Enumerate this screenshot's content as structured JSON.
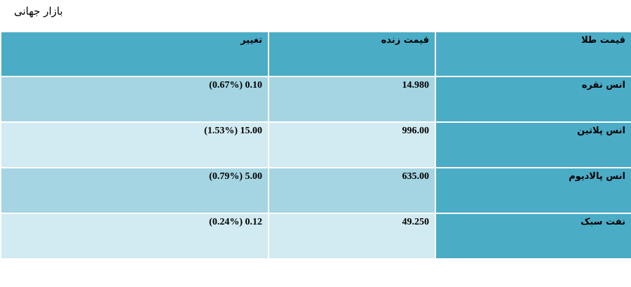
{
  "page": {
    "title": "بازار جهانی"
  },
  "table": {
    "headers": [
      "قیمت طلا",
      "قیمت زنده",
      "تغییر"
    ],
    "rows": [
      {
        "name": "انس نقره",
        "price": "14.980",
        "change": "0.10 (0.67%)"
      },
      {
        "name": "انس پلاتین",
        "price": "996.00",
        "change": "15.00 (1.53%)"
      },
      {
        "name": "انس پالادیوم",
        "price": "635.00",
        "change": "5.00 (0.79%)"
      },
      {
        "name": "نفت سبک",
        "price": "49.250",
        "change": "0.12 (0.24%)"
      }
    ]
  },
  "colors": {
    "header_bg": "#4bacc6",
    "name_bg": "#4bacc6",
    "row_odd_bg": "#a5d5e2",
    "row_even_bg": "#d2eaf1"
  }
}
